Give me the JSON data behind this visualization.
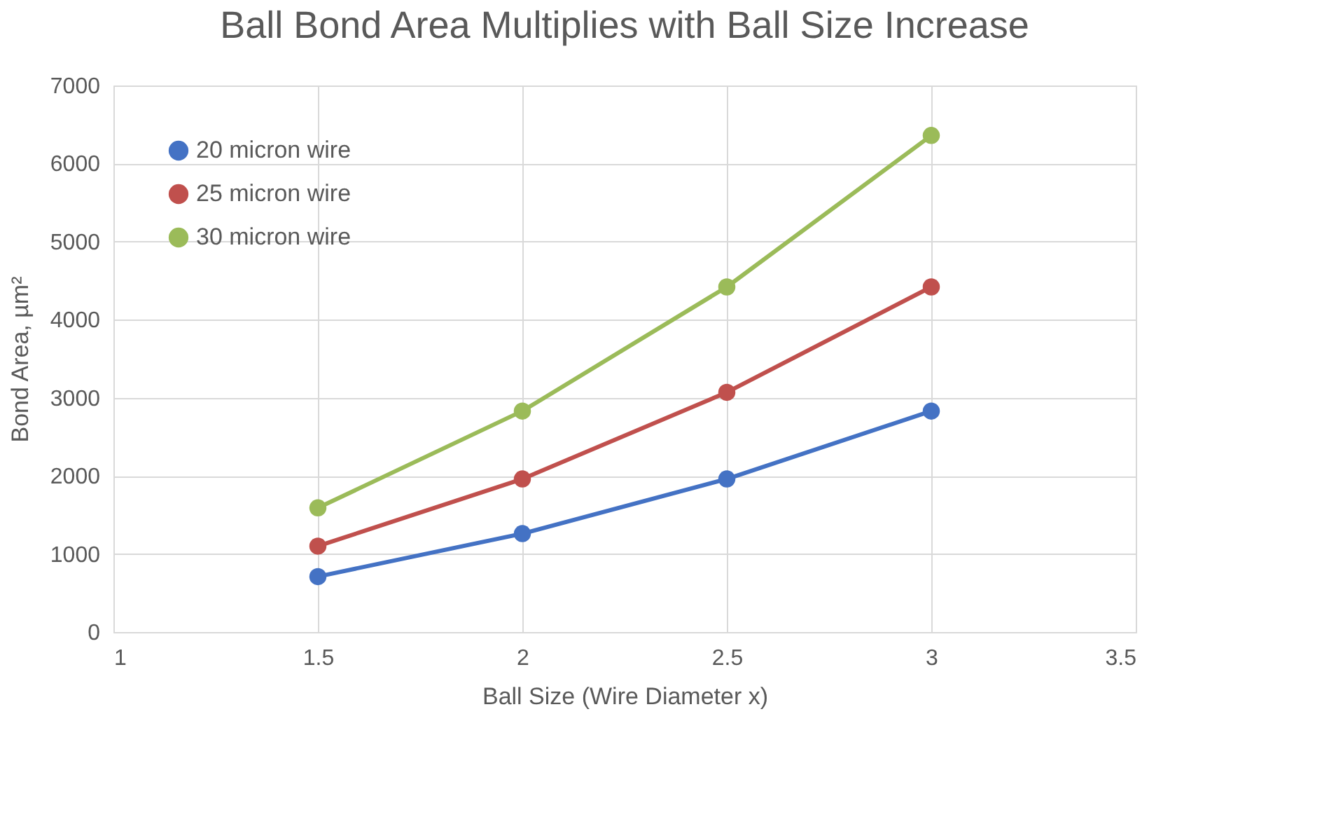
{
  "chart_data": {
    "type": "line",
    "title": "Ball Bond Area Multiplies with Ball Size Increase",
    "xlabel": "Ball Size (Wire Diameter x)",
    "ylabel": "Bond Area, µm²",
    "x": [
      1.5,
      2,
      2.5,
      3
    ],
    "series": [
      {
        "name": "20 micron wire",
        "color": "#4472c4",
        "values": [
          710,
          1260,
          1960,
          2830
        ]
      },
      {
        "name": "25 micron wire",
        "color": "#c0504d",
        "values": [
          1100,
          1960,
          3070,
          4420
        ]
      },
      {
        "name": "30 micron wire",
        "color": "#9bbb59",
        "values": [
          1590,
          2830,
          4420,
          6360
        ]
      }
    ],
    "xlim": [
      1,
      3.5
    ],
    "xticks": [
      1,
      1.5,
      2,
      2.5,
      3,
      3.5
    ],
    "ylim": [
      0,
      7000
    ],
    "yticks": [
      0,
      1000,
      2000,
      3000,
      4000,
      5000,
      6000,
      7000
    ],
    "grid": true,
    "legend": "top left",
    "marker": "circle",
    "line_style": "solid"
  }
}
